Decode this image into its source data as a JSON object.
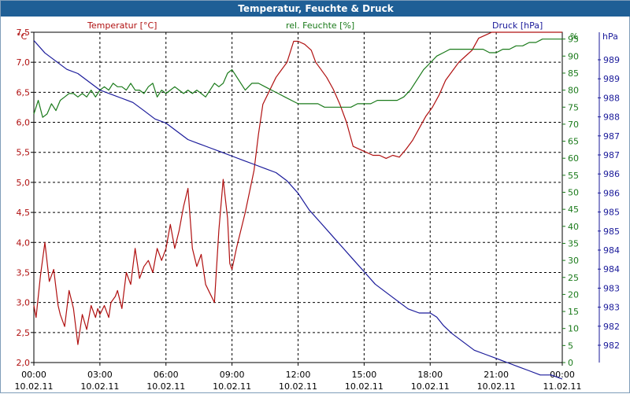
{
  "window": {
    "title": "Temperatur, Feuchte & Druck"
  },
  "chart_data": {
    "type": "line",
    "title": "Temperatur, Feuchte & Druck",
    "x_ticks": [
      {
        "time": "00:00",
        "date": "10.02.11"
      },
      {
        "time": "03:00",
        "date": "10.02.11"
      },
      {
        "time": "06:00",
        "date": "10.02.11"
      },
      {
        "time": "09:00",
        "date": "10.02.11"
      },
      {
        "time": "12:00",
        "date": "10.02.11"
      },
      {
        "time": "15:00",
        "date": "10.02.11"
      },
      {
        "time": "18:00",
        "date": "10.02.11"
      },
      {
        "time": "21:00",
        "date": "10.02.11"
      },
      {
        "time": "00:00",
        "date": "11.02.11"
      }
    ],
    "xlim": [
      0,
      24
    ],
    "grid": true,
    "axes": {
      "temperature": {
        "label": "Temperatur [°C]",
        "unit": "°C",
        "color": "#b01010",
        "ylim": [
          2.0,
          7.5
        ],
        "ticks": [
          "2,0",
          "2,5",
          "3,0",
          "3,5",
          "4,0",
          "4,5",
          "5,0",
          "5,5",
          "6,0",
          "6,5",
          "7,0",
          "7,5"
        ]
      },
      "humidity": {
        "label": "rel. Feuchte [%]",
        "unit": "%",
        "color": "#1a7a1a",
        "ylim": [
          0,
          97
        ],
        "ticks": [
          "0",
          "5",
          "10",
          "15",
          "20",
          "25",
          "30",
          "35",
          "40",
          "45",
          "50",
          "55",
          "60",
          "65",
          "70",
          "75",
          "80",
          "85",
          "90",
          "95"
        ]
      },
      "pressure": {
        "label": "Druck [hPa]",
        "unit": "hPa",
        "color": "#1a1a9a",
        "ylim": [
          981.6,
          989.6
        ],
        "ticks": [
          "982",
          "982",
          "983",
          "983",
          "984",
          "984",
          "985",
          "985",
          "986",
          "986",
          "987",
          "987",
          "988",
          "988",
          "989",
          "989"
        ]
      }
    },
    "series": [
      {
        "name": "Temperatur",
        "axis": "temperature",
        "color": "#b01010",
        "x": [
          0.0,
          0.1,
          0.3,
          0.5,
          0.7,
          0.9,
          1.1,
          1.2,
          1.4,
          1.6,
          1.8,
          2.0,
          2.2,
          2.4,
          2.6,
          2.8,
          2.9,
          3.0,
          3.2,
          3.4,
          3.5,
          3.7,
          3.8,
          4.0,
          4.2,
          4.4,
          4.6,
          4.8,
          5.0,
          5.2,
          5.4,
          5.6,
          5.8,
          6.0,
          6.2,
          6.4,
          6.6,
          6.8,
          7.0,
          7.2,
          7.4,
          7.6,
          7.8,
          8.0,
          8.2,
          8.4,
          8.6,
          8.8,
          8.9,
          9.0,
          9.2,
          9.4,
          9.6,
          9.8,
          10.0,
          10.2,
          10.4,
          10.6,
          10.8,
          11.0,
          11.2,
          11.5,
          11.8,
          12.0,
          12.3,
          12.6,
          12.8,
          13.0,
          13.3,
          13.6,
          13.9,
          14.2,
          14.5,
          14.8,
          15.1,
          15.4,
          15.7,
          16.0,
          16.3,
          16.6,
          16.9,
          17.2,
          17.5,
          17.8,
          18.1,
          18.4,
          18.7,
          19.0,
          19.3,
          19.6,
          19.9,
          20.2,
          20.5,
          20.8,
          21.1,
          21.4,
          21.7,
          22.0,
          22.3,
          22.6,
          22.9,
          23.2,
          23.5,
          23.8,
          24.0
        ],
        "values": [
          2.95,
          2.75,
          3.45,
          4.0,
          3.35,
          3.55,
          2.95,
          2.8,
          2.6,
          3.2,
          2.9,
          2.3,
          2.8,
          2.55,
          2.95,
          2.75,
          2.9,
          2.8,
          2.95,
          2.75,
          3.0,
          3.1,
          3.2,
          2.9,
          3.5,
          3.3,
          3.9,
          3.4,
          3.6,
          3.7,
          3.5,
          3.9,
          3.7,
          3.9,
          4.3,
          3.9,
          4.2,
          4.6,
          4.9,
          3.9,
          3.6,
          3.8,
          3.3,
          3.15,
          3.0,
          4.2,
          5.05,
          4.4,
          3.65,
          3.55,
          3.9,
          4.2,
          4.5,
          4.85,
          5.2,
          5.8,
          6.3,
          6.45,
          6.6,
          6.75,
          6.85,
          7.0,
          7.35,
          7.35,
          7.3,
          7.2,
          7.0,
          6.9,
          6.75,
          6.55,
          6.3,
          6.0,
          5.6,
          5.55,
          5.5,
          5.45,
          5.45,
          5.4,
          5.45,
          5.42,
          5.55,
          5.7,
          5.9,
          6.1,
          6.25,
          6.45,
          6.7,
          6.85,
          7.0,
          7.1,
          7.2,
          7.4,
          7.45,
          7.5,
          7.5,
          7.5,
          7.5,
          7.5,
          7.5,
          7.5,
          7.5,
          7.5,
          7.5,
          7.5,
          7.5
        ]
      },
      {
        "name": "rel. Feuchte",
        "axis": "humidity",
        "color": "#1a7a1a",
        "x": [
          0.0,
          0.2,
          0.4,
          0.6,
          0.8,
          1.0,
          1.2,
          1.4,
          1.6,
          1.8,
          2.0,
          2.2,
          2.4,
          2.6,
          2.8,
          3.0,
          3.2,
          3.4,
          3.6,
          3.8,
          4.0,
          4.2,
          4.4,
          4.6,
          4.8,
          5.0,
          5.2,
          5.4,
          5.6,
          5.8,
          6.0,
          6.2,
          6.4,
          6.6,
          6.8,
          7.0,
          7.2,
          7.4,
          7.6,
          7.8,
          8.0,
          8.2,
          8.4,
          8.6,
          8.8,
          9.0,
          9.3,
          9.6,
          9.9,
          10.2,
          10.5,
          10.8,
          11.1,
          11.4,
          11.7,
          12.0,
          12.3,
          12.6,
          12.9,
          13.2,
          13.5,
          13.8,
          14.1,
          14.4,
          14.7,
          15.0,
          15.3,
          15.6,
          15.9,
          16.2,
          16.5,
          16.8,
          17.1,
          17.4,
          17.7,
          18.0,
          18.3,
          18.6,
          18.9,
          19.2,
          19.5,
          19.8,
          20.1,
          20.4,
          20.7,
          21.0,
          21.3,
          21.6,
          21.9,
          22.2,
          22.5,
          22.8,
          23.1,
          23.4,
          23.7,
          24.0
        ],
        "values": [
          73,
          77,
          72,
          73,
          76,
          74,
          77,
          78,
          79,
          79,
          78,
          79,
          78,
          80,
          78,
          80,
          81,
          80,
          82,
          81,
          81,
          80,
          82,
          80,
          80,
          79,
          81,
          82,
          78,
          80,
          79,
          80,
          81,
          80,
          79,
          80,
          79,
          80,
          79,
          78,
          80,
          82,
          81,
          82,
          85,
          86,
          83,
          80,
          82,
          82,
          81,
          80,
          79,
          78,
          77,
          76,
          76,
          76,
          76,
          75,
          75,
          75,
          75,
          75,
          76,
          76,
          76,
          77,
          77,
          77,
          77,
          78,
          80,
          83,
          86,
          88,
          90,
          91,
          92,
          92,
          92,
          92,
          92,
          92,
          91,
          91,
          92,
          92,
          93,
          93,
          94,
          94,
          95,
          95,
          95,
          95
        ]
      },
      {
        "name": "Druck",
        "axis": "pressure",
        "color": "#1a1a9a",
        "x": [
          0.0,
          0.5,
          1.0,
          1.5,
          2.0,
          2.5,
          3.0,
          3.5,
          4.0,
          4.5,
          5.0,
          5.5,
          6.0,
          6.5,
          7.0,
          7.5,
          8.0,
          8.5,
          9.0,
          9.5,
          10.0,
          10.5,
          11.0,
          11.5,
          12.0,
          12.5,
          13.0,
          13.5,
          14.0,
          14.5,
          15.0,
          15.5,
          16.0,
          16.5,
          17.0,
          17.5,
          18.0,
          18.3,
          18.6,
          19.0,
          19.5,
          20.0,
          20.5,
          21.0,
          21.5,
          22.0,
          22.5,
          23.0,
          23.5,
          24.0
        ],
        "values": [
          989.4,
          989.1,
          988.9,
          988.7,
          988.6,
          988.4,
          988.2,
          988.1,
          988.0,
          987.9,
          987.7,
          987.5,
          987.4,
          987.2,
          987.0,
          986.9,
          986.8,
          986.7,
          986.6,
          986.5,
          986.4,
          986.3,
          986.2,
          986.0,
          985.7,
          985.3,
          985.0,
          984.7,
          984.4,
          984.1,
          983.8,
          983.5,
          983.3,
          983.1,
          982.9,
          982.8,
          982.8,
          982.7,
          982.5,
          982.3,
          982.1,
          981.9,
          981.8,
          981.7,
          981.6,
          981.5,
          981.4,
          981.3,
          981.3,
          981.2
        ]
      }
    ]
  }
}
